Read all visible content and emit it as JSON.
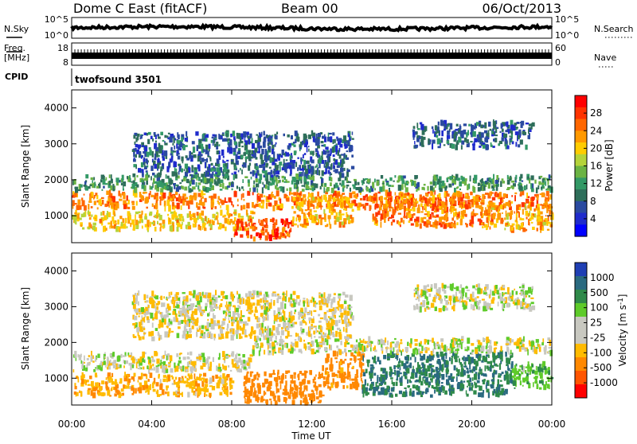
{
  "header": {
    "station": "Dome C East (fitACF)",
    "beam": "Beam 00",
    "date": "06/Oct/2013"
  },
  "nsky": {
    "label": "N.Sky",
    "top": "10^5",
    "bottom": "10^0",
    "right_top": "10^5",
    "right_bottom": "10^0",
    "right_label": "N.Search"
  },
  "freq": {
    "label1": "Freq.",
    "label2": "[MHz]",
    "top": "18",
    "bottom": "8",
    "right_top": "60",
    "right_bottom": "0",
    "right_label": "Nave"
  },
  "cpid": {
    "label": "CPID",
    "value": "twofsound 3501"
  },
  "colorbars": {
    "power": {
      "title": "Power [dB]",
      "ticks": [
        "28",
        "24",
        "20",
        "16",
        "12",
        "8",
        "4"
      ],
      "colors": [
        "#ff0000",
        "#ff3300",
        "#ff6600",
        "#ff9900",
        "#ffcc00",
        "#b5d33a",
        "#6bb343",
        "#339966",
        "#2e6e5a",
        "#2a4aa0",
        "#1f2bcc",
        "#0000ff"
      ]
    },
    "velocity": {
      "title": "Velocity [m s-1]",
      "title_main": "Velocity  [m s",
      "title_sup": "-1",
      "title_end": "]",
      "ticks": [
        "1000",
        "500",
        "100",
        "25",
        "-25",
        "-100",
        "-500",
        "-1000"
      ],
      "colors": [
        "#1f3fb4",
        "#2a6a80",
        "#2f8a4a",
        "#5ecb2a",
        "#c8c8c0",
        "#c8c8c0",
        "#ffbb00",
        "#ff8800",
        "#ff5500",
        "#ff0000"
      ]
    }
  },
  "chart_data": [
    {
      "type": "heatmap",
      "name": "power",
      "ylabel": "Slant Range [km]",
      "ylim": [
        250,
        4500
      ],
      "yticks": [
        "1000",
        "2000",
        "3000",
        "4000"
      ],
      "bands": [
        {
          "t0": 0,
          "t1": 24,
          "r0": 1200,
          "r1": 1650,
          "value": 24
        },
        {
          "t0": 0,
          "t1": 9,
          "r0": 600,
          "r1": 1100,
          "value": 20
        },
        {
          "t0": 8,
          "t1": 11,
          "r0": 350,
          "r1": 900,
          "value": 26
        },
        {
          "t0": 11,
          "t1": 14,
          "r0": 700,
          "r1": 1500,
          "value": 22
        },
        {
          "t0": 15,
          "t1": 21,
          "r0": 700,
          "r1": 1500,
          "value": 24
        },
        {
          "t0": 20.5,
          "t1": 24,
          "r0": 600,
          "r1": 1300,
          "value": 22
        },
        {
          "t0": 0,
          "t1": 24,
          "r0": 1700,
          "r1": 2100,
          "value": 12
        },
        {
          "t0": 3,
          "t1": 14,
          "r0": 2100,
          "r1": 3300,
          "value": 8
        },
        {
          "t0": 17,
          "t1": 23,
          "r0": 2900,
          "r1": 3600,
          "value": 8
        }
      ]
    },
    {
      "type": "heatmap",
      "name": "velocity",
      "ylabel": "Slant Range [km]",
      "ylim": [
        250,
        4500
      ],
      "yticks": [
        "1000",
        "2000",
        "3000",
        "4000"
      ],
      "bands": [
        {
          "t0": 0,
          "t1": 9,
          "r0": 1200,
          "r1": 1700,
          "value": 0
        },
        {
          "t0": 0,
          "t1": 8,
          "r0": 500,
          "r1": 1100,
          "value": -80
        },
        {
          "t0": 8.5,
          "t1": 12.5,
          "r0": 300,
          "r1": 1200,
          "value": -300
        },
        {
          "t0": 12.5,
          "t1": 14.5,
          "r0": 700,
          "r1": 1700,
          "value": -150
        },
        {
          "t0": 14.5,
          "t1": 22,
          "r0": 500,
          "r1": 1700,
          "value": 300
        },
        {
          "t0": 22,
          "t1": 24,
          "r0": 700,
          "r1": 1400,
          "value": 80
        },
        {
          "t0": 9,
          "t1": 24,
          "r0": 1700,
          "r1": 2100,
          "value": 0
        },
        {
          "t0": 3,
          "t1": 14,
          "r0": 2100,
          "r1": 3400,
          "value": -20
        },
        {
          "t0": 17,
          "t1": 23,
          "r0": 2900,
          "r1": 3600,
          "value": 0
        }
      ]
    }
  ],
  "xaxis": {
    "ticks": [
      "00:00",
      "04:00",
      "08:00",
      "12:00",
      "16:00",
      "20:00",
      "00:00"
    ],
    "label": "Time UT",
    "range_hours": [
      0,
      24
    ]
  }
}
